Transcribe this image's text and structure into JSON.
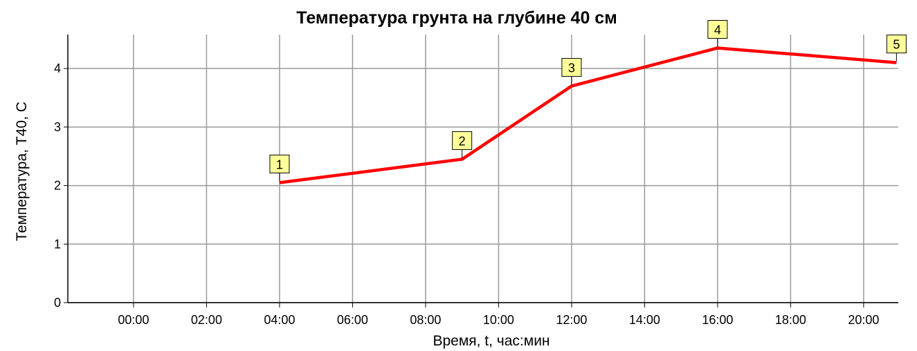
{
  "chart_data": {
    "type": "line",
    "title": "Температура грунта на глубине 40 см",
    "x_label": "Время, t, час:мин",
    "y_label": "Температура,  T40, C",
    "x": [
      4,
      9,
      12,
      16,
      20.9
    ],
    "series": [
      {
        "name": "T40",
        "color": "#ff0000",
        "values": [
          2.05,
          2.45,
          3.7,
          4.35,
          4.1
        ]
      }
    ],
    "point_labels": [
      "1",
      "2",
      "3",
      "4",
      "5"
    ],
    "xlim": [
      -1.8,
      20.95
    ],
    "xticks": [
      {
        "value": 0,
        "label": "00:00"
      },
      {
        "value": 2,
        "label": "02:00"
      },
      {
        "value": 4,
        "label": "04:00"
      },
      {
        "value": 6,
        "label": "06:00"
      },
      {
        "value": 8,
        "label": "08:00"
      },
      {
        "value": 10,
        "label": "10:00"
      },
      {
        "value": 12,
        "label": "12:00"
      },
      {
        "value": 14,
        "label": "14:00"
      },
      {
        "value": 16,
        "label": "16:00"
      },
      {
        "value": 18,
        "label": "18:00"
      },
      {
        "value": 20,
        "label": "20:00"
      }
    ],
    "ylim": [
      0,
      4.58
    ],
    "yticks": [
      0,
      1,
      2,
      3,
      4
    ],
    "grid": true
  }
}
